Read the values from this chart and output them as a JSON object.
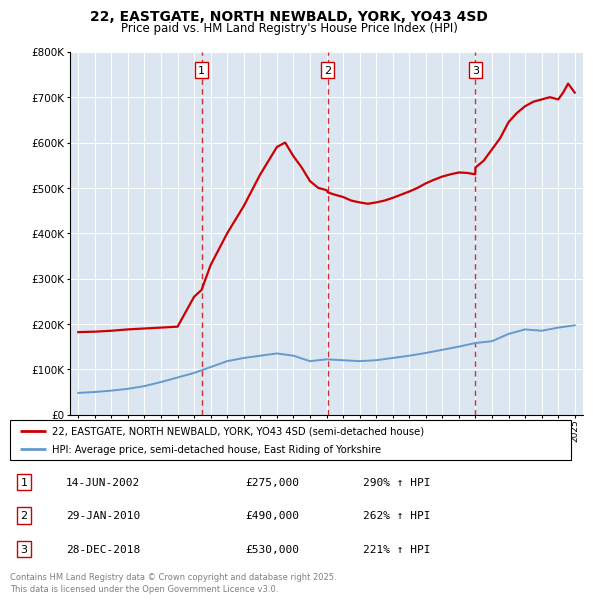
{
  "title": "22, EASTGATE, NORTH NEWBALD, YORK, YO43 4SD",
  "subtitle": "Price paid vs. HM Land Registry's House Price Index (HPI)",
  "legend_line1": "22, EASTGATE, NORTH NEWBALD, YORK, YO43 4SD (semi-detached house)",
  "legend_line2": "HPI: Average price, semi-detached house, East Riding of Yorkshire",
  "footnote": "Contains HM Land Registry data © Crown copyright and database right 2025.\nThis data is licensed under the Open Government Licence v3.0.",
  "sale_events": [
    {
      "num": 1,
      "date_str": "14-JUN-2002",
      "price": 275000,
      "hpi_pct": "290% ↑ HPI",
      "date_x": 2002.45
    },
    {
      "num": 2,
      "date_str": "29-JAN-2010",
      "price": 490000,
      "hpi_pct": "262% ↑ HPI",
      "date_x": 2010.08
    },
    {
      "num": 3,
      "date_str": "28-DEC-2018",
      "price": 530000,
      "hpi_pct": "221% ↑ HPI",
      "date_x": 2018.99
    }
  ],
  "red_line_color": "#cc0000",
  "blue_line_color": "#6699cc",
  "bg_color": "#dce6f1",
  "grid_color": "#ffffff",
  "ylim": [
    0,
    800000
  ],
  "xlim": [
    1994.5,
    2025.5
  ],
  "yticks": [
    0,
    100000,
    200000,
    300000,
    400000,
    500000,
    600000,
    700000,
    800000
  ],
  "hpi_years": [
    1995,
    1996,
    1997,
    1998,
    1999,
    2000,
    2001,
    2002,
    2003,
    2004,
    2005,
    2006,
    2007,
    2008,
    2009,
    2010,
    2011,
    2012,
    2013,
    2014,
    2015,
    2016,
    2017,
    2018,
    2019,
    2020,
    2021,
    2022,
    2023,
    2024,
    2025
  ],
  "hpi_values": [
    48000,
    50000,
    53000,
    57000,
    63000,
    72000,
    82000,
    92000,
    105000,
    118000,
    125000,
    130000,
    135000,
    130000,
    118000,
    122000,
    120000,
    118000,
    120000,
    125000,
    130000,
    136000,
    143000,
    150000,
    158000,
    162000,
    178000,
    188000,
    185000,
    192000,
    197000
  ],
  "red_years": [
    1995,
    1996,
    1997,
    1998,
    1999,
    2000,
    2001,
    2002,
    2002.45,
    2003,
    2004,
    2005,
    2006,
    2007,
    2007.5,
    2008,
    2008.5,
    2009,
    2009.5,
    2010,
    2010.08,
    2010.5,
    2011,
    2011.5,
    2012,
    2012.5,
    2013,
    2013.5,
    2014,
    2014.5,
    2015,
    2015.5,
    2016,
    2016.5,
    2017,
    2017.5,
    2018,
    2018.5,
    2018.99,
    2019,
    2019.5,
    2020,
    2020.5,
    2021,
    2021.5,
    2022,
    2022.5,
    2023,
    2023.5,
    2024,
    2024.3,
    2024.6,
    2025
  ],
  "red_values": [
    182000,
    183000,
    185000,
    188000,
    190000,
    192000,
    194000,
    260000,
    275000,
    330000,
    400000,
    460000,
    530000,
    590000,
    600000,
    570000,
    545000,
    515000,
    500000,
    495000,
    490000,
    485000,
    480000,
    472000,
    468000,
    465000,
    468000,
    472000,
    478000,
    485000,
    492000,
    500000,
    510000,
    518000,
    525000,
    530000,
    534000,
    533000,
    530000,
    545000,
    560000,
    585000,
    610000,
    645000,
    665000,
    680000,
    690000,
    695000,
    700000,
    695000,
    710000,
    730000,
    710000
  ]
}
